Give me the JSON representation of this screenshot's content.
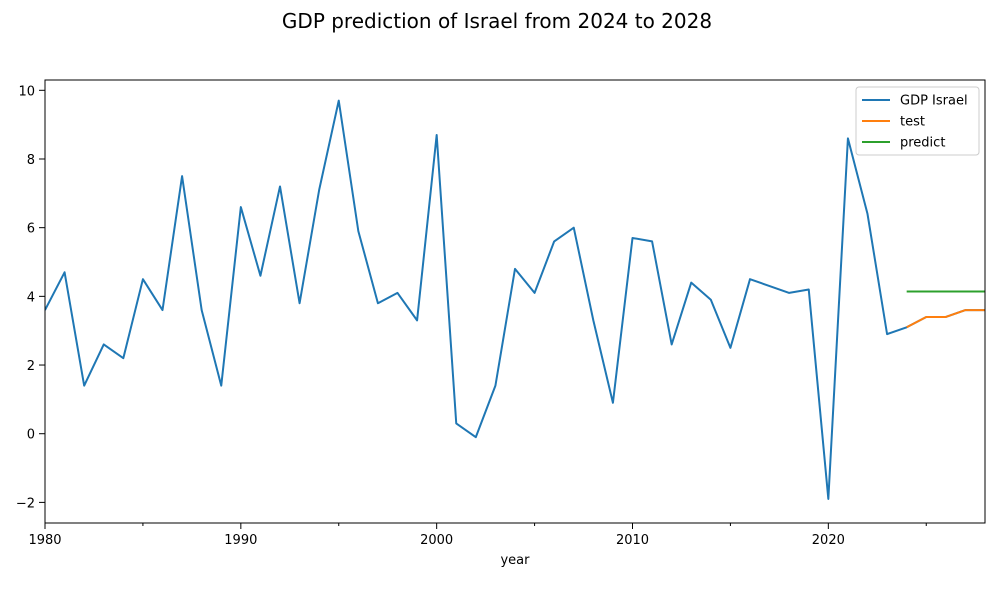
{
  "chart_data": {
    "type": "line",
    "title": "GDP prediction of Israel from 2024 to 2028",
    "xlabel": "year",
    "ylabel": "",
    "xlim": [
      1980,
      2028
    ],
    "ylim": [
      -2.6,
      10.3
    ],
    "xticks": [
      1980,
      1990,
      2000,
      2010,
      2020
    ],
    "xtick_labels": [
      "1980",
      "1990",
      "2000",
      "2010",
      "2020"
    ],
    "yticks": [
      -2,
      0,
      2,
      4,
      6,
      8,
      10
    ],
    "ytick_labels": [
      "−2",
      "0",
      "2",
      "4",
      "6",
      "8",
      "10"
    ],
    "grid": false,
    "legend_position": "top-right",
    "series": [
      {
        "name": "GDP Israel",
        "color": "#1f77b4",
        "x": [
          1980,
          1981,
          1982,
          1983,
          1984,
          1985,
          1986,
          1987,
          1988,
          1989,
          1990,
          1991,
          1992,
          1993,
          1994,
          1995,
          1996,
          1997,
          1998,
          1999,
          2000,
          2001,
          2002,
          2003,
          2004,
          2005,
          2006,
          2007,
          2008,
          2009,
          2010,
          2011,
          2012,
          2013,
          2014,
          2015,
          2016,
          2017,
          2018,
          2019,
          2020,
          2021,
          2022,
          2023,
          2024,
          2025,
          2026,
          2027,
          2028
        ],
        "values": [
          3.6,
          4.7,
          1.4,
          2.6,
          2.2,
          4.5,
          3.6,
          7.5,
          3.6,
          1.4,
          6.6,
          4.6,
          7.2,
          3.8,
          7.1,
          9.7,
          5.9,
          3.8,
          4.1,
          3.3,
          8.7,
          0.3,
          -0.1,
          1.4,
          4.8,
          4.1,
          5.6,
          6.0,
          3.3,
          0.9,
          5.7,
          5.6,
          2.6,
          4.4,
          3.9,
          2.5,
          4.5,
          4.3,
          4.1,
          4.2,
          -1.9,
          8.6,
          6.4,
          2.9,
          3.1,
          3.4,
          3.4,
          3.6,
          3.6
        ]
      },
      {
        "name": "test",
        "color": "#ff7f0e",
        "x": [
          2024,
          2025,
          2026,
          2027,
          2028
        ],
        "values": [
          3.1,
          3.4,
          3.4,
          3.6,
          3.6
        ]
      },
      {
        "name": "predict",
        "color": "#2ca02c",
        "x": [
          2024,
          2025,
          2026,
          2027,
          2028
        ],
        "values": [
          4.14,
          4.14,
          4.14,
          4.14,
          4.14
        ]
      }
    ]
  }
}
